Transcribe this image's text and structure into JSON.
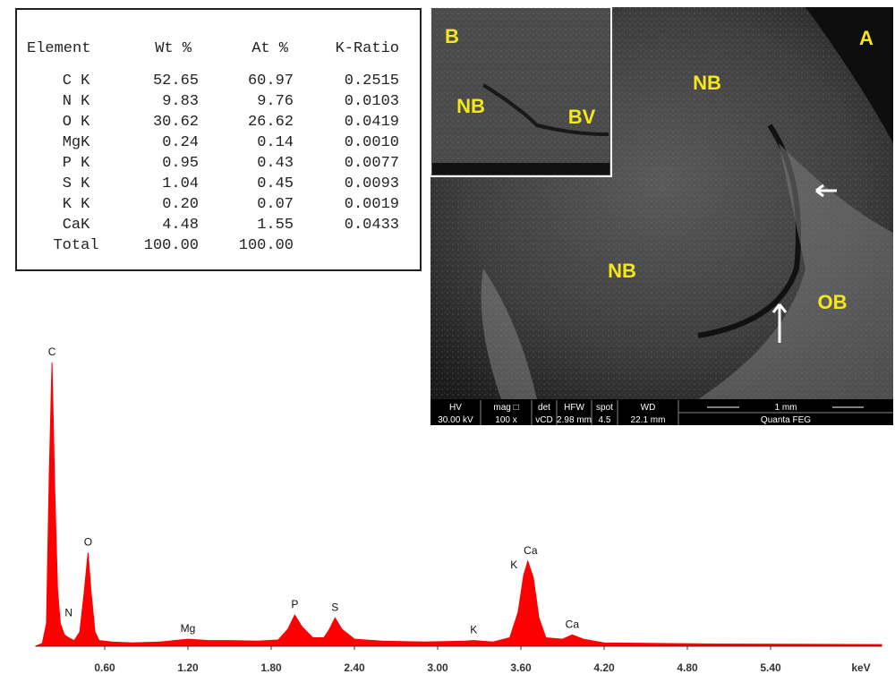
{
  "table": {
    "header": [
      "Element",
      "Wt %",
      "At %",
      "K-Ratio"
    ],
    "rows": [
      [
        "C K",
        "52.65",
        "60.97",
        "0.2515"
      ],
      [
        "N K",
        "9.83",
        "9.76",
        "0.0103"
      ],
      [
        "O K",
        "30.62",
        "26.62",
        "0.0419"
      ],
      [
        "MgK",
        "0.24",
        "0.14",
        "0.0010"
      ],
      [
        "P K",
        "0.95",
        "0.43",
        "0.0077"
      ],
      [
        "S K",
        "1.04",
        "0.45",
        "0.0093"
      ],
      [
        "K K",
        "0.20",
        "0.07",
        "0.0019"
      ],
      [
        "CaK",
        "4.48",
        "1.55",
        "0.0433"
      ],
      [
        "Total",
        "100.00",
        "100.00"
      ]
    ]
  },
  "image": {
    "labels": [
      "A",
      "B",
      "NB",
      "BV",
      "NB",
      "NB",
      "OB"
    ],
    "info_bar": [
      {
        "top": "HV",
        "bottom": "30.00 kV"
      },
      {
        "top": "mag □",
        "bottom": "100 x"
      },
      {
        "top": "det",
        "bottom": "vCD"
      },
      {
        "top": "HFW",
        "bottom": "2.98 mm"
      },
      {
        "top": "spot",
        "bottom": "4.5"
      },
      {
        "top": "WD",
        "bottom": "22.1 mm"
      }
    ],
    "scale_bar": "1 mm",
    "instrument": "Quanta FEG"
  },
  "chart_data": {
    "type": "area",
    "xlabel": "keV",
    "color": "#ff0000",
    "x": [
      0.1,
      0.15,
      0.18,
      0.2,
      0.22,
      0.24,
      0.26,
      0.28,
      0.31,
      0.34,
      0.38,
      0.42,
      0.45,
      0.48,
      0.5,
      0.53,
      0.56,
      0.65,
      0.8,
      1.0,
      1.2,
      1.35,
      1.5,
      1.7,
      1.85,
      1.92,
      1.97,
      2.02,
      2.1,
      2.18,
      2.22,
      2.26,
      2.31,
      2.4,
      2.6,
      2.9,
      3.2,
      3.26,
      3.4,
      3.52,
      3.58,
      3.62,
      3.65,
      3.69,
      3.73,
      3.78,
      3.9,
      3.97,
      4.05,
      4.2,
      4.6,
      5.0,
      5.6,
      6.2
    ],
    "values": [
      0,
      1,
      8,
      60,
      100,
      55,
      20,
      8,
      4,
      3,
      2,
      5,
      18,
      33,
      20,
      5,
      2,
      1.5,
      1.2,
      1.5,
      2.5,
      2,
      2,
      1.8,
      2.2,
      6,
      11,
      7,
      3,
      3,
      6,
      10,
      6,
      2.5,
      1.8,
      1.5,
      1.8,
      2,
      1.5,
      3,
      12,
      25,
      30,
      24,
      10,
      3,
      2.5,
      4,
      2.5,
      1.2,
      1,
      0.8,
      0.7,
      0.6
    ],
    "xlim": [
      0.1,
      6.2
    ],
    "ylim": [
      0,
      100
    ],
    "xticks": [
      {
        "value": 0.6,
        "label": "0.60"
      },
      {
        "value": 1.2,
        "label": "1.20"
      },
      {
        "value": 1.8,
        "label": "1.80"
      },
      {
        "value": 2.4,
        "label": "2.40"
      },
      {
        "value": 3.0,
        "label": "3.00"
      },
      {
        "value": 3.6,
        "label": "3.60"
      },
      {
        "value": 4.2,
        "label": "4.20"
      },
      {
        "value": 4.8,
        "label": "4.80"
      },
      {
        "value": 5.4,
        "label": "5.40"
      }
    ],
    "annotations": [
      {
        "text": "C",
        "x": 0.22
      },
      {
        "text": "N",
        "x": 0.34
      },
      {
        "text": "O",
        "x": 0.48
      },
      {
        "text": "Mg",
        "x": 1.2
      },
      {
        "text": "P",
        "x": 1.97
      },
      {
        "text": "S",
        "x": 2.26
      },
      {
        "text": "K",
        "x": 3.26
      },
      {
        "text": "K",
        "x": 3.55
      },
      {
        "text": "Ca",
        "x": 3.67
      },
      {
        "text": "Ca",
        "x": 3.97
      }
    ]
  }
}
